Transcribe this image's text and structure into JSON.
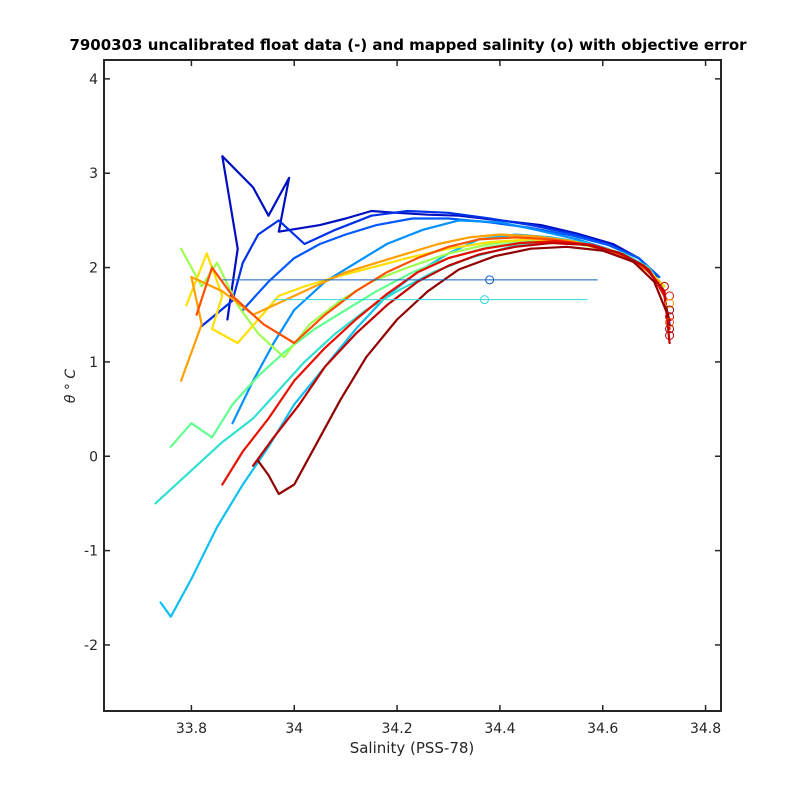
{
  "chart_data": {
    "type": "line",
    "title": "7900303 uncalibrated float data (-) and mapped salinity (o) with objective error",
    "xlabel": "Salinity (PSS-78)",
    "ylabel": "θ ° C",
    "xlim": [
      33.63,
      34.83
    ],
    "ylim": [
      -2.7,
      4.2
    ],
    "xticks": [
      33.8,
      34,
      34.2,
      34.4,
      34.6,
      34.8
    ],
    "xtick_labels": [
      "33.8",
      "34",
      "34.2",
      "34.4",
      "34.6",
      "34.8"
    ],
    "yticks": [
      -2,
      -1,
      0,
      1,
      2,
      3,
      4
    ],
    "ytick_labels": [
      "-2",
      "-1",
      "0",
      "1",
      "2",
      "3",
      "4"
    ],
    "grid": false,
    "legend": "none",
    "colormap": "jet (early profiles blue, late profiles dark red)",
    "series": [
      {
        "color": "#0010c0",
        "x": [
          33.87,
          33.89,
          33.86,
          33.92,
          33.95,
          33.99,
          33.97,
          34.05,
          34.1,
          34.15,
          34.2,
          34.26,
          34.32,
          34.4,
          34.48,
          34.55,
          34.62,
          34.67,
          34.7,
          34.72,
          34.73
        ],
        "y": [
          1.45,
          2.2,
          3.18,
          2.85,
          2.55,
          2.95,
          2.38,
          2.45,
          2.52,
          2.6,
          2.58,
          2.56,
          2.55,
          2.5,
          2.45,
          2.36,
          2.25,
          2.1,
          1.95,
          1.7,
          1.4
        ]
      },
      {
        "color": "#0030e8",
        "x": [
          33.82,
          33.88,
          33.9,
          33.93,
          33.97,
          34.02,
          34.08,
          34.15,
          34.22,
          34.3,
          34.38,
          34.46,
          34.54,
          34.61,
          34.67,
          34.71
        ],
        "y": [
          1.38,
          1.65,
          2.05,
          2.35,
          2.5,
          2.25,
          2.4,
          2.55,
          2.6,
          2.58,
          2.52,
          2.45,
          2.36,
          2.25,
          2.1,
          1.9
        ]
      },
      {
        "color": "#0058ff",
        "x": [
          33.9,
          33.95,
          34.0,
          34.05,
          34.1,
          34.16,
          34.23,
          34.3,
          34.38,
          34.46,
          34.54,
          34.61,
          34.67,
          34.71
        ],
        "y": [
          1.55,
          1.85,
          2.1,
          2.25,
          2.35,
          2.45,
          2.52,
          2.52,
          2.48,
          2.42,
          2.34,
          2.24,
          2.1,
          1.9
        ]
      },
      {
        "color": "#0090ff",
        "x": [
          33.88,
          33.92,
          33.96,
          34.0,
          34.06,
          34.12,
          34.18,
          34.25,
          34.32,
          34.4,
          34.47,
          34.55,
          34.62,
          34.68,
          34.72
        ],
        "y": [
          0.35,
          0.8,
          1.2,
          1.55,
          1.85,
          2.05,
          2.25,
          2.4,
          2.5,
          2.48,
          2.4,
          2.3,
          2.18,
          2.02,
          1.8
        ]
      },
      {
        "color": "#10c0f0",
        "x": [
          33.74,
          33.76,
          33.8,
          33.85,
          33.9,
          33.95,
          34.0,
          34.06,
          34.12,
          34.18,
          34.24,
          34.3,
          34.36,
          34.43,
          34.5,
          34.57,
          34.63,
          34.68,
          34.72
        ],
        "y": [
          -1.55,
          -1.7,
          -1.3,
          -0.75,
          -0.3,
          0.1,
          0.55,
          0.95,
          1.35,
          1.7,
          1.95,
          2.15,
          2.3,
          2.35,
          2.32,
          2.26,
          2.16,
          2.02,
          1.8
        ]
      },
      {
        "color": "#30e0d0",
        "x": [
          33.73,
          33.8,
          33.86,
          33.92,
          33.97,
          34.02,
          34.08,
          34.14,
          34.2,
          34.27,
          34.34,
          34.42,
          34.5,
          34.57,
          34.64,
          34.69,
          34.72
        ],
        "y": [
          -0.5,
          -0.15,
          0.15,
          0.4,
          0.7,
          1.0,
          1.3,
          1.55,
          1.75,
          1.95,
          2.1,
          2.22,
          2.28,
          2.25,
          2.15,
          2.0,
          1.75
        ]
      },
      {
        "color": "#60ff90",
        "x": [
          33.76,
          33.8,
          33.84,
          33.88,
          33.93,
          33.98,
          34.04,
          34.1,
          34.16,
          34.23,
          34.3,
          34.38,
          34.46,
          34.54,
          34.62,
          34.68,
          34.72
        ],
        "y": [
          0.1,
          0.35,
          0.2,
          0.55,
          0.85,
          1.1,
          1.35,
          1.55,
          1.75,
          1.95,
          2.1,
          2.22,
          2.28,
          2.26,
          2.18,
          2.02,
          1.8
        ]
      },
      {
        "color": "#a0ff50",
        "x": [
          33.78,
          33.82,
          33.85,
          33.89,
          33.93,
          33.98,
          34.03,
          34.09,
          34.15,
          34.22,
          34.3,
          34.38,
          34.46,
          34.54,
          34.62,
          34.68,
          34.72
        ],
        "y": [
          2.2,
          1.8,
          2.05,
          1.6,
          1.3,
          1.05,
          1.4,
          1.65,
          1.85,
          2.0,
          2.15,
          2.25,
          2.3,
          2.28,
          2.18,
          2.02,
          1.8
        ]
      },
      {
        "color": "#ffe000",
        "x": [
          33.79,
          33.83,
          33.86,
          33.84,
          33.89,
          33.93,
          33.97,
          34.02,
          34.08,
          34.15,
          34.22,
          34.3,
          34.38,
          34.46,
          34.54,
          34.62,
          34.68,
          34.72
        ],
        "y": [
          1.6,
          2.15,
          1.7,
          1.35,
          1.2,
          1.45,
          1.7,
          1.8,
          1.9,
          2.0,
          2.1,
          2.2,
          2.27,
          2.3,
          2.27,
          2.17,
          2.02,
          1.8
        ]
      },
      {
        "color": "#ffa000",
        "x": [
          33.78,
          33.82,
          33.8,
          33.86,
          33.92,
          33.98,
          34.04,
          34.1,
          34.16,
          34.22,
          34.28,
          34.34,
          34.4,
          34.47,
          34.54,
          34.61,
          34.67,
          34.71
        ],
        "y": [
          0.8,
          1.4,
          1.9,
          1.75,
          1.5,
          1.65,
          1.8,
          1.95,
          2.05,
          2.15,
          2.25,
          2.32,
          2.35,
          2.33,
          2.28,
          2.18,
          2.04,
          1.85
        ]
      },
      {
        "color": "#ff5000",
        "x": [
          33.81,
          33.84,
          33.88,
          33.94,
          34.0,
          34.06,
          34.12,
          34.18,
          34.24,
          34.3,
          34.36,
          34.43,
          34.5,
          34.57,
          34.64,
          34.69,
          34.72
        ],
        "y": [
          1.5,
          2.0,
          1.7,
          1.4,
          1.2,
          1.5,
          1.75,
          1.95,
          2.1,
          2.22,
          2.3,
          2.32,
          2.3,
          2.24,
          2.12,
          1.96,
          1.75
        ]
      },
      {
        "color": "#e81000",
        "x": [
          33.86,
          33.9,
          33.95,
          34.0,
          34.06,
          34.12,
          34.18,
          34.24,
          34.3,
          34.37,
          34.44,
          34.51,
          34.58,
          34.64,
          34.69,
          34.72,
          34.73
        ],
        "y": [
          -0.3,
          0.05,
          0.4,
          0.8,
          1.15,
          1.45,
          1.72,
          1.95,
          2.1,
          2.2,
          2.26,
          2.28,
          2.24,
          2.14,
          1.98,
          1.7,
          1.35
        ]
      },
      {
        "color": "#c00000",
        "x": [
          33.92,
          33.96,
          34.01,
          34.06,
          34.12,
          34.18,
          34.24,
          34.3,
          34.36,
          34.43,
          34.5,
          34.57,
          34.63,
          34.68,
          34.72,
          34.73
        ],
        "y": [
          -0.1,
          0.2,
          0.55,
          0.95,
          1.3,
          1.6,
          1.85,
          2.02,
          2.14,
          2.22,
          2.26,
          2.24,
          2.16,
          2.02,
          1.75,
          1.2
        ]
      },
      {
        "color": "#900000",
        "x": [
          33.93,
          33.95,
          33.97,
          34.0,
          34.04,
          34.09,
          34.14,
          34.2,
          34.26,
          34.32,
          34.39,
          34.46,
          34.53,
          34.6,
          34.66,
          34.7,
          34.73
        ],
        "y": [
          -0.05,
          -0.2,
          -0.4,
          -0.3,
          0.1,
          0.6,
          1.05,
          1.45,
          1.75,
          1.98,
          2.12,
          2.2,
          2.22,
          2.18,
          2.06,
          1.85,
          1.45
        ]
      }
    ],
    "mapped_points": [
      {
        "color": "#1060c0",
        "x": 34.38,
        "y": 1.87,
        "err_low": 33.86,
        "err_high": 34.59
      },
      {
        "color": "#30d8e0",
        "x": 34.37,
        "y": 1.66,
        "err_low": 33.96,
        "err_high": 34.57
      },
      {
        "color": "#c00000",
        "x": 34.72,
        "y": 1.8
      },
      {
        "color": "#e81000",
        "x": 34.73,
        "y": 1.7
      },
      {
        "color": "#ffa000",
        "x": 34.73,
        "y": 1.62
      },
      {
        "color": "#900000",
        "x": 34.73,
        "y": 1.55
      },
      {
        "color": "#c00000",
        "x": 34.73,
        "y": 1.48
      },
      {
        "color": "#ff5000",
        "x": 34.73,
        "y": 1.42
      },
      {
        "color": "#900000",
        "x": 34.73,
        "y": 1.35
      },
      {
        "color": "#c00000",
        "x": 34.73,
        "y": 1.28
      }
    ]
  }
}
